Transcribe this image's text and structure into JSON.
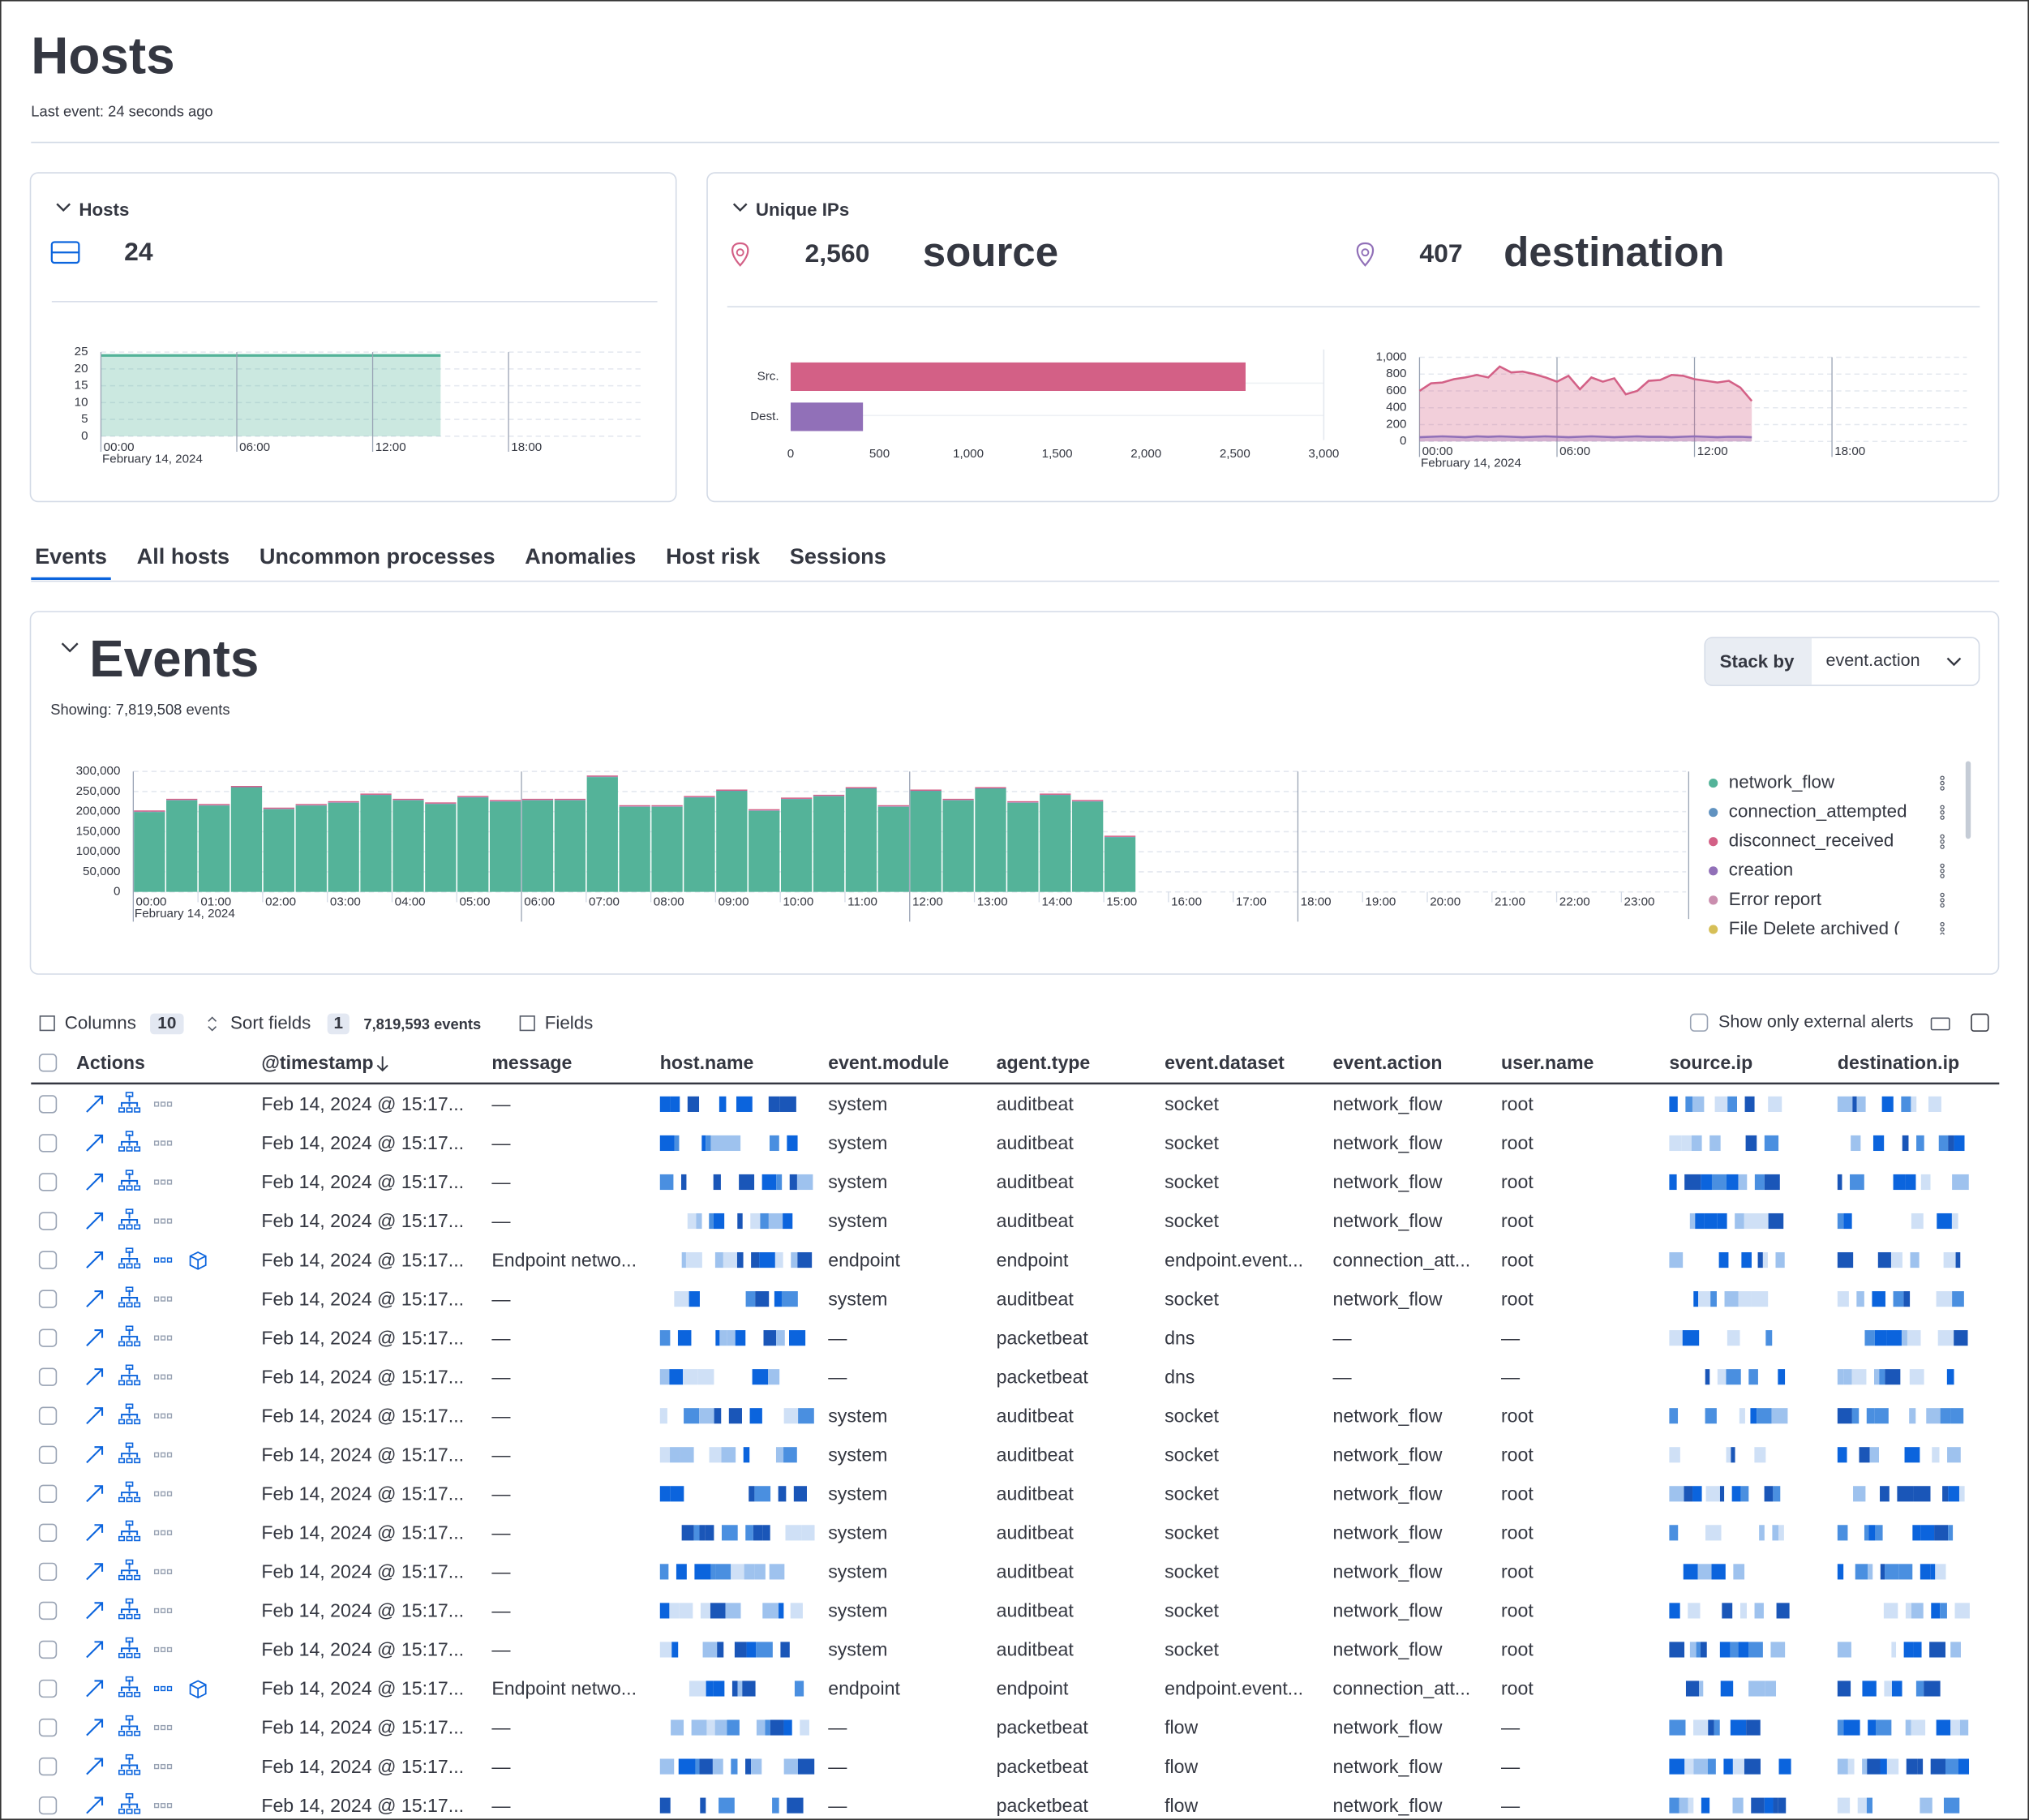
{
  "header": {
    "title": "Hosts",
    "subtitle": "Last event: 24 seconds ago"
  },
  "hosts_panel": {
    "title": "Hosts",
    "count": "24",
    "chart": {
      "type": "area",
      "color": "#54b399",
      "x": [
        0,
        15
      ],
      "values": [
        24,
        24
      ],
      "xlim": [
        0,
        24
      ],
      "xticks": [
        {
          "value": 0,
          "label": "00:00"
        },
        {
          "value": 6,
          "label": "06:00"
        },
        {
          "value": 12,
          "label": "12:00"
        },
        {
          "value": 18,
          "label": "18:00"
        }
      ],
      "date_label": "February 14, 2024",
      "ylim": [
        0,
        25
      ],
      "yticks": [
        0,
        5,
        10,
        15,
        20,
        25
      ],
      "grid": true
    }
  },
  "unique_ips": {
    "title": "Unique IPs",
    "source": {
      "count": "2,560",
      "label": "source",
      "color": "#d36086"
    },
    "destination": {
      "count": "407",
      "label": "destination",
      "color": "#9170b8"
    },
    "bar_chart": {
      "type": "bar",
      "orientation": "horizontal",
      "categories": [
        "Src.",
        "Dest."
      ],
      "values": [
        2560,
        407
      ],
      "colors": [
        "#d36086",
        "#9170b8"
      ],
      "xlim": [
        0,
        3000
      ],
      "xticks": [
        0,
        500,
        {
          "value": 1000,
          "label": "1,000"
        },
        {
          "value": 1500,
          "label": "1,500"
        },
        {
          "value": 2000,
          "label": "2,000"
        },
        {
          "value": 2500,
          "label": "2,500"
        },
        {
          "value": 3000,
          "label": "3,000"
        }
      ]
    },
    "area_chart": {
      "type": "area",
      "x": [
        0,
        0.5,
        1,
        1.5,
        2,
        2.5,
        3,
        3.5,
        4,
        4.5,
        5,
        5.5,
        6,
        6.5,
        7,
        7.5,
        8,
        8.5,
        9,
        9.5,
        10,
        10.5,
        11,
        11.5,
        12,
        12.5,
        13,
        13.5,
        14,
        14.5
      ],
      "series": [
        {
          "color": "#d36086",
          "values": [
            600,
            690,
            700,
            740,
            760,
            790,
            760,
            890,
            820,
            830,
            800,
            760,
            710,
            780,
            620,
            760,
            710,
            750,
            560,
            600,
            720,
            730,
            790,
            780,
            740,
            720,
            700,
            720,
            640,
            480
          ]
        },
        {
          "color": "#9170b8",
          "values": [
            50,
            55,
            60,
            55,
            50,
            60,
            55,
            60,
            55,
            50,
            55,
            60,
            55,
            50,
            55,
            60,
            55,
            50,
            55,
            60,
            55,
            55,
            50,
            55,
            60,
            55,
            50,
            55,
            55,
            50
          ]
        }
      ],
      "xlim": [
        0,
        24
      ],
      "xticks": [
        {
          "value": 0,
          "label": "00:00"
        },
        {
          "value": 6,
          "label": "06:00"
        },
        {
          "value": 12,
          "label": "12:00"
        },
        {
          "value": 18,
          "label": "18:00"
        }
      ],
      "date_label": "February 14, 2024",
      "ylim": [
        0,
        1000
      ],
      "yticks": [
        0,
        200,
        400,
        600,
        800,
        {
          "value": 1000,
          "label": "1,000"
        }
      ],
      "grid": true
    }
  },
  "tabs": {
    "items": [
      "Events",
      "All hosts",
      "Uncommon processes",
      "Anomalies",
      "Host risk",
      "Sessions"
    ],
    "active": 0
  },
  "events_panel": {
    "title": "Events",
    "showing": "Showing: 7,819,508 events",
    "stack_by_label": "Stack by",
    "stack_by_value": "event.action",
    "chart": {
      "type": "stacked_bar",
      "x": [
        0,
        0.5,
        1,
        1.5,
        2,
        2.5,
        3,
        3.5,
        4,
        4.5,
        5,
        5.5,
        6,
        6.5,
        7,
        7.5,
        8,
        8.5,
        9,
        9.5,
        10,
        10.5,
        11,
        11.5,
        12,
        12.5,
        13,
        13.5,
        14,
        14.5,
        15
      ],
      "series": [
        {
          "name": "network_flow",
          "color": "#54b399",
          "values": [
            199000,
            228000,
            215000,
            260000,
            206000,
            215000,
            222000,
            241000,
            228000,
            219000,
            235000,
            225000,
            228000,
            228000,
            286000,
            212000,
            212000,
            235000,
            251000,
            202000,
            231000,
            238000,
            257000,
            212000,
            251000,
            228000,
            257000,
            222000,
            241000,
            225000,
            136000
          ]
        },
        {
          "name": "connection_attempted",
          "color": "#6092c0",
          "values": [
            1000,
            1000,
            1000,
            1000,
            1000,
            1000,
            1000,
            1000,
            1000,
            1000,
            1000,
            1000,
            1000,
            1000,
            1000,
            1000,
            1000,
            1000,
            1000,
            1000,
            1000,
            1000,
            1000,
            1000,
            1000,
            1000,
            1000,
            1000,
            1000,
            1000,
            1000
          ]
        },
        {
          "name": "disconnect_received",
          "color": "#d36086",
          "values": [
            3000,
            3000,
            3000,
            3000,
            3000,
            3000,
            3000,
            3000,
            3000,
            3000,
            3000,
            3000,
            3000,
            3000,
            3000,
            3000,
            3000,
            3000,
            3000,
            3000,
            3000,
            3000,
            3000,
            3000,
            3000,
            3000,
            3000,
            3000,
            3000,
            3000,
            3000
          ]
        }
      ],
      "legend_extra": [
        {
          "name": "creation",
          "color": "#9170b8"
        },
        {
          "name": "Error report",
          "color": "#ca8eae"
        },
        {
          "name": "File Delete archived (",
          "color": "#d6bf57"
        }
      ],
      "xlim": [
        0,
        24
      ],
      "xticks": [
        {
          "value": 0,
          "label": "00:00"
        },
        {
          "value": 1,
          "label": "01:00"
        },
        {
          "value": 2,
          "label": "02:00"
        },
        {
          "value": 3,
          "label": "03:00"
        },
        {
          "value": 4,
          "label": "04:00"
        },
        {
          "value": 5,
          "label": "05:00"
        },
        {
          "value": 6,
          "label": "06:00"
        },
        {
          "value": 7,
          "label": "07:00"
        },
        {
          "value": 8,
          "label": "08:00"
        },
        {
          "value": 9,
          "label": "09:00"
        },
        {
          "value": 10,
          "label": "10:00"
        },
        {
          "value": 11,
          "label": "11:00"
        },
        {
          "value": 12,
          "label": "12:00"
        },
        {
          "value": 13,
          "label": "13:00"
        },
        {
          "value": 14,
          "label": "14:00"
        },
        {
          "value": 15,
          "label": "15:00"
        },
        {
          "value": 16,
          "label": "16:00"
        },
        {
          "value": 17,
          "label": "17:00"
        },
        {
          "value": 18,
          "label": "18:00"
        },
        {
          "value": 19,
          "label": "19:00"
        },
        {
          "value": 20,
          "label": "20:00"
        },
        {
          "value": 21,
          "label": "21:00"
        },
        {
          "value": 22,
          "label": "22:00"
        },
        {
          "value": 23,
          "label": "23:00"
        }
      ],
      "date_label": "February 14, 2024",
      "ylim": [
        0,
        300000
      ],
      "yticks": [
        0,
        {
          "value": 50000,
          "label": "50,000"
        },
        {
          "value": 100000,
          "label": "100,000"
        },
        {
          "value": 150000,
          "label": "150,000"
        },
        {
          "value": 200000,
          "label": "200,000"
        },
        {
          "value": 250000,
          "label": "250,000"
        },
        {
          "value": 300000,
          "label": "300,000"
        }
      ],
      "grid": true
    }
  },
  "table": {
    "toolbar": {
      "columns_label": "Columns",
      "columns_count": "10",
      "sort_label": "Sort fields",
      "sort_count": "1",
      "events_count": "7,819,593 events",
      "fields_label": "Fields",
      "external_alerts": "Show only external alerts"
    },
    "headers": [
      "Actions",
      "@timestamp",
      "message",
      "host.name",
      "event.module",
      "agent.type",
      "event.dataset",
      "event.action",
      "user.name",
      "source.ip",
      "destination.ip"
    ],
    "rows": [
      [
        "Feb 14, 2024 @ 15:17...",
        "—",
        "system",
        "auditbeat",
        "socket",
        "network_flow",
        "root"
      ],
      [
        "Feb 14, 2024 @ 15:17...",
        "—",
        "system",
        "auditbeat",
        "socket",
        "network_flow",
        "root"
      ],
      [
        "Feb 14, 2024 @ 15:17...",
        "—",
        "system",
        "auditbeat",
        "socket",
        "network_flow",
        "root"
      ],
      [
        "Feb 14, 2024 @ 15:17...",
        "—",
        "system",
        "auditbeat",
        "socket",
        "network_flow",
        "root"
      ],
      [
        "Feb 14, 2024 @ 15:17...",
        "Endpoint netwo...",
        "endpoint",
        "endpoint",
        "endpoint.event...",
        "connection_att...",
        "root"
      ],
      [
        "Feb 14, 2024 @ 15:17...",
        "—",
        "system",
        "auditbeat",
        "socket",
        "network_flow",
        "root"
      ],
      [
        "Feb 14, 2024 @ 15:17...",
        "—",
        "—",
        "packetbeat",
        "dns",
        "—",
        "—"
      ],
      [
        "Feb 14, 2024 @ 15:17...",
        "—",
        "—",
        "packetbeat",
        "dns",
        "—",
        "—"
      ],
      [
        "Feb 14, 2024 @ 15:17...",
        "—",
        "system",
        "auditbeat",
        "socket",
        "network_flow",
        "root"
      ],
      [
        "Feb 14, 2024 @ 15:17...",
        "—",
        "system",
        "auditbeat",
        "socket",
        "network_flow",
        "root"
      ],
      [
        "Feb 14, 2024 @ 15:17...",
        "—",
        "system",
        "auditbeat",
        "socket",
        "network_flow",
        "root"
      ],
      [
        "Feb 14, 2024 @ 15:17...",
        "—",
        "system",
        "auditbeat",
        "socket",
        "network_flow",
        "root"
      ],
      [
        "Feb 14, 2024 @ 15:17...",
        "—",
        "system",
        "auditbeat",
        "socket",
        "network_flow",
        "root"
      ],
      [
        "Feb 14, 2024 @ 15:17...",
        "—",
        "system",
        "auditbeat",
        "socket",
        "network_flow",
        "root"
      ],
      [
        "Feb 14, 2024 @ 15:17...",
        "—",
        "system",
        "auditbeat",
        "socket",
        "network_flow",
        "root"
      ],
      [
        "Feb 14, 2024 @ 15:17...",
        "Endpoint netwo...",
        "endpoint",
        "endpoint",
        "endpoint.event...",
        "connection_att...",
        "root"
      ],
      [
        "Feb 14, 2024 @ 15:17...",
        "—",
        "—",
        "packetbeat",
        "flow",
        "network_flow",
        "—"
      ],
      [
        "Feb 14, 2024 @ 15:17...",
        "—",
        "—",
        "packetbeat",
        "flow",
        "network_flow",
        "—"
      ],
      [
        "Feb 14, 2024 @ 15:17...",
        "—",
        "—",
        "packetbeat",
        "flow",
        "network_flow",
        "—"
      ]
    ]
  }
}
